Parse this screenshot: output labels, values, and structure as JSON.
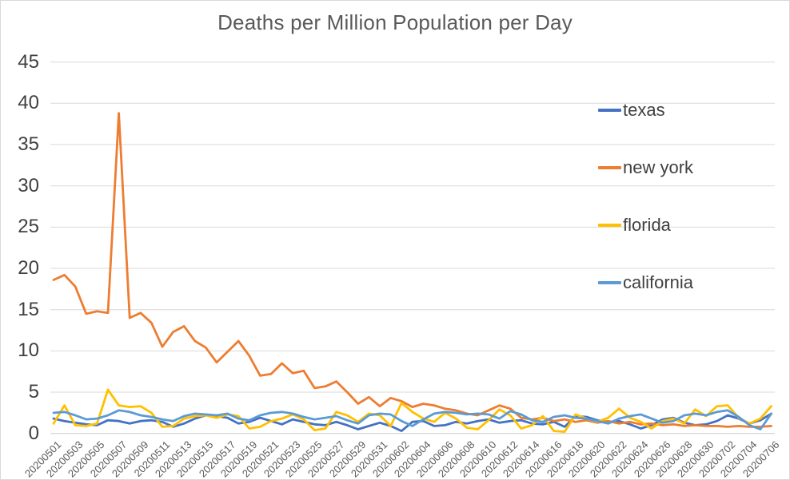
{
  "chart_data": {
    "type": "line",
    "title": "Deaths per Million Population per Day",
    "xlabel": "",
    "ylabel": "",
    "ylim": [
      0,
      45
    ],
    "y_tick_step": 5,
    "y_ticks": [
      45,
      40,
      35,
      30,
      25,
      20,
      15,
      10,
      5,
      0
    ],
    "grid": true,
    "legend_position": "right-overlay",
    "x_tick_every": 2,
    "x": [
      "20200501",
      "20200502",
      "20200503",
      "20200504",
      "20200505",
      "20200506",
      "20200507",
      "20200508",
      "20200509",
      "20200510",
      "20200511",
      "20200512",
      "20200513",
      "20200514",
      "20200515",
      "20200516",
      "20200517",
      "20200518",
      "20200519",
      "20200520",
      "20200521",
      "20200522",
      "20200523",
      "20200524",
      "20200525",
      "20200526",
      "20200527",
      "20200528",
      "20200529",
      "20200530",
      "20200531",
      "20200601",
      "20200602",
      "20200603",
      "20200604",
      "20200605",
      "20200606",
      "20200607",
      "20200608",
      "20200609",
      "20200610",
      "20200611",
      "20200612",
      "20200613",
      "20200614",
      "20200615",
      "20200616",
      "20200617",
      "20200618",
      "20200619",
      "20200620",
      "20200621",
      "20200622",
      "20200623",
      "20200624",
      "20200625",
      "20200626",
      "20200627",
      "20200628",
      "20200629",
      "20200630",
      "20200701",
      "20200702",
      "20200703",
      "20200704",
      "20200705",
      "20200706"
    ],
    "series": [
      {
        "name": "texas",
        "color": "#4472C4",
        "values": [
          1.8,
          1.5,
          1.3,
          1.1,
          1.0,
          1.6,
          1.5,
          1.2,
          1.5,
          1.6,
          1.4,
          0.8,
          1.2,
          1.8,
          2.2,
          2.1,
          1.9,
          1.2,
          1.4,
          1.9,
          1.5,
          1.1,
          1.7,
          1.4,
          1.1,
          1.0,
          1.4,
          1.0,
          0.5,
          0.9,
          1.3,
          0.9,
          0.3,
          1.4,
          1.5,
          0.9,
          1.0,
          1.4,
          1.2,
          1.5,
          1.7,
          1.3,
          1.5,
          1.6,
          1.2,
          1.1,
          1.4,
          0.8,
          2.1,
          2.0,
          1.6,
          1.4,
          1.5,
          1.1,
          0.6,
          1.0,
          1.7,
          1.9,
          1.3,
          1.0,
          1.1,
          1.5,
          2.2,
          1.8,
          1.2,
          1.6,
          2.4
        ]
      },
      {
        "name": "new york",
        "color": "#ED7D31",
        "values": [
          18.6,
          19.2,
          17.8,
          14.5,
          14.8,
          14.6,
          38.8,
          14.0,
          14.6,
          13.4,
          10.5,
          12.3,
          13.0,
          11.2,
          10.4,
          8.6,
          9.9,
          11.2,
          9.4,
          7.0,
          7.2,
          8.5,
          7.3,
          7.6,
          5.5,
          5.7,
          6.3,
          5.0,
          3.6,
          4.4,
          3.3,
          4.3,
          3.9,
          3.2,
          3.6,
          3.4,
          3.0,
          2.8,
          2.4,
          2.2,
          2.8,
          3.4,
          3.0,
          1.9,
          1.7,
          1.9,
          1.5,
          1.7,
          1.4,
          1.6,
          1.3,
          1.5,
          1.2,
          1.4,
          1.1,
          1.2,
          1.0,
          1.1,
          0.9,
          1.0,
          0.9,
          0.9,
          0.8,
          0.9,
          0.8,
          0.8,
          0.9
        ]
      },
      {
        "name": "florida",
        "color": "#FFC000",
        "values": [
          1.2,
          3.4,
          1.0,
          0.9,
          1.2,
          5.3,
          3.4,
          3.2,
          3.3,
          2.5,
          0.8,
          0.9,
          1.8,
          2.1,
          2.2,
          1.9,
          2.3,
          2.1,
          0.6,
          0.8,
          1.5,
          1.8,
          2.3,
          1.7,
          0.4,
          0.6,
          2.6,
          2.2,
          1.4,
          2.4,
          2.2,
          0.9,
          3.7,
          2.6,
          1.8,
          1.4,
          2.5,
          1.8,
          0.7,
          0.5,
          1.6,
          2.9,
          2.2,
          0.6,
          1.0,
          2.1,
          0.3,
          0.2,
          2.3,
          1.8,
          1.4,
          1.9,
          3.0,
          1.9,
          1.4,
          0.6,
          1.5,
          1.8,
          1.2,
          2.9,
          2.1,
          3.3,
          3.4,
          1.9,
          1.2,
          1.8,
          3.3
        ]
      },
      {
        "name": "california",
        "color": "#5B9BD5",
        "values": [
          2.5,
          2.6,
          2.2,
          1.7,
          1.8,
          2.2,
          2.8,
          2.6,
          2.2,
          2.0,
          1.7,
          1.5,
          2.1,
          2.4,
          2.3,
          2.2,
          2.4,
          1.8,
          1.6,
          2.2,
          2.5,
          2.6,
          2.4,
          2.0,
          1.7,
          1.9,
          2.1,
          1.6,
          1.2,
          2.2,
          2.4,
          2.3,
          1.5,
          0.9,
          1.7,
          2.4,
          2.6,
          2.5,
          2.3,
          2.4,
          2.3,
          1.8,
          2.7,
          2.3,
          1.6,
          1.4,
          2.0,
          2.2,
          1.9,
          1.8,
          1.5,
          1.2,
          1.8,
          2.1,
          2.3,
          1.8,
          1.3,
          1.5,
          2.2,
          2.4,
          2.2,
          2.6,
          2.8,
          2.0,
          1.0,
          0.5,
          2.4
        ]
      }
    ]
  },
  "colors": {
    "gridline": "#D9D9D9",
    "axis_line": "#D9D9D9",
    "border": "#D9D9D9",
    "title_text": "#595959",
    "tick_text": "#404040",
    "background": "#FFFFFF"
  }
}
